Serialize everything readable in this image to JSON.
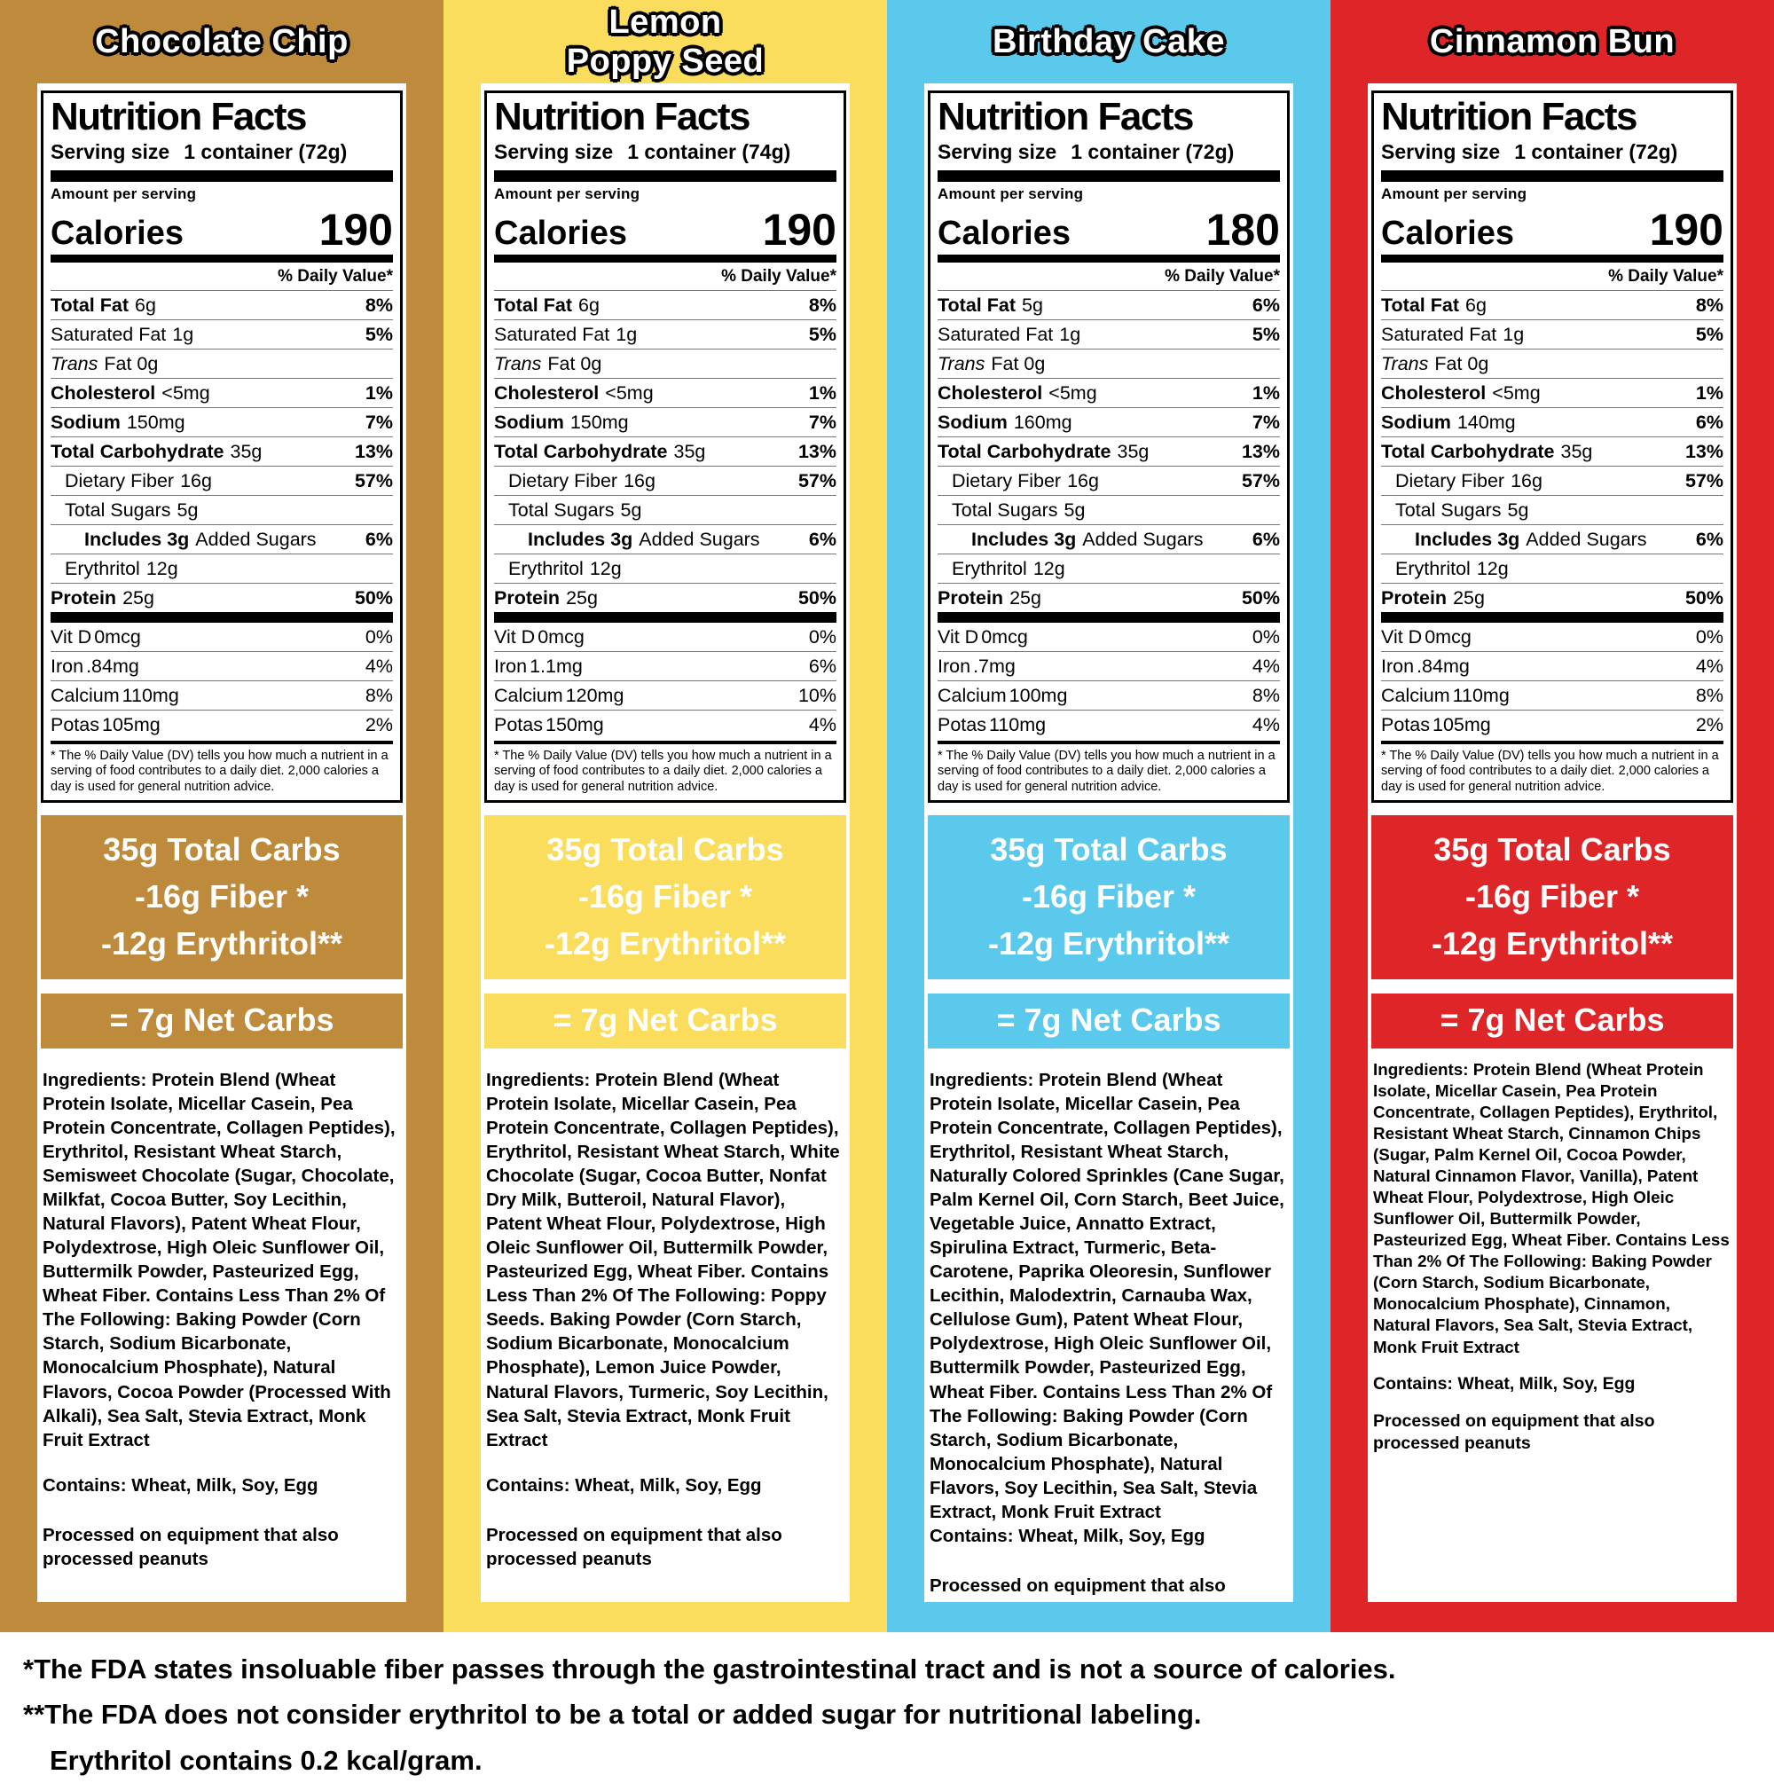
{
  "columns": [
    {
      "title_lines": [
        "Chocolate Chip"
      ],
      "color": "#BE8B3D",
      "label": {
        "heading": "Nutrition Facts",
        "serving_label": "Serving size",
        "serving_value": "1 container (72g)",
        "amount_per_serving": "Amount per serving",
        "calories_label": "Calories",
        "calories_value": "190",
        "dv_header": "% Daily Value*",
        "rows": [
          {
            "name": "Total Fat",
            "amount": "6g",
            "dv": "8%",
            "cls": "b"
          },
          {
            "name": "Saturated Fat",
            "amount": "1g",
            "dv": "5%",
            "cls": "p"
          },
          {
            "name": "Trans",
            "amount": "Fat 0g",
            "dv": "",
            "cls": "i"
          },
          {
            "name": "Cholesterol",
            "amount": "<5mg",
            "dv": "1%",
            "cls": "b"
          },
          {
            "name": "Sodium",
            "amount": "150mg",
            "dv": "7%",
            "cls": "b"
          },
          {
            "name": "Total Carbohydrate",
            "amount": "35g",
            "dv": "13%",
            "cls": "b"
          },
          {
            "name": "Dietary Fiber",
            "amount": "16g",
            "dv": "57%",
            "cls": "p ind1"
          },
          {
            "name": "Total Sugars",
            "amount": "5g",
            "dv": "",
            "cls": "p ind1"
          },
          {
            "name": "Includes 3g",
            "amount": "Added Sugars",
            "dv": "6%",
            "cls": "inc ind2"
          },
          {
            "name": "Erythritol",
            "amount": "12g",
            "dv": "",
            "cls": "p ind1"
          },
          {
            "name": "Protein",
            "amount": "25g",
            "dv": "50%",
            "cls": "b"
          }
        ],
        "vitamins": [
          {
            "name": "Vit D",
            "amount": "0mcg",
            "dv": "0%"
          },
          {
            "name": "Iron",
            "amount": ".84mg",
            "dv": "4%"
          },
          {
            "name": "Calcium",
            "amount": "110mg",
            "dv": "8%"
          },
          {
            "name": "Potas",
            "amount": "105mg",
            "dv": "2%"
          }
        ],
        "footnote": "* The % Daily Value (DV) tells you how much a nutrient in a serving of food contributes to a daily diet. 2,000 calories a day is used for general nutrition advice."
      },
      "carb_box": [
        "35g Total Carbs",
        "-16g Fiber *",
        "-12g Erythritol**"
      ],
      "net_box": "= 7g Net Carbs",
      "ingredients": "Ingredients: Protein Blend (Wheat Protein Isolate, Micellar Casein, Pea Protein Concentrate, Collagen Peptides), Erythritol, Resistant Wheat Starch, Semisweet Chocolate (Sugar, Chocolate, Milkfat, Cocoa Butter, Soy Lecithin, Natural Flavors), Patent Wheat Flour, Polydextrose, High Oleic Sunflower Oil, Buttermilk Powder, Pasteurized Egg, Wheat Fiber. Contains Less Than 2% Of The Following: Baking Powder (Corn Starch, Sodium Bicarbonate, Monocalcium Phosphate), Natural Flavors, Cocoa Powder (Processed With Alkali), Sea Salt, Stevia Extract, Monk Fruit Extract",
      "contains": "Contains: Wheat, Milk, Soy, Egg",
      "processed": "Processed on equipment that also processed peanuts"
    },
    {
      "title_lines": [
        "Lemon",
        "Poppy Seed"
      ],
      "color": "#FADD5C",
      "label": {
        "heading": "Nutrition Facts",
        "serving_label": "Serving size",
        "serving_value": "1 container (74g)",
        "amount_per_serving": "Amount per serving",
        "calories_label": "Calories",
        "calories_value": "190",
        "dv_header": "% Daily Value*",
        "rows": [
          {
            "name": "Total Fat",
            "amount": "6g",
            "dv": "8%",
            "cls": "b"
          },
          {
            "name": "Saturated Fat",
            "amount": "1g",
            "dv": "5%",
            "cls": "p"
          },
          {
            "name": "Trans",
            "amount": "Fat 0g",
            "dv": "",
            "cls": "i"
          },
          {
            "name": "Cholesterol",
            "amount": "<5mg",
            "dv": "1%",
            "cls": "b"
          },
          {
            "name": "Sodium",
            "amount": "150mg",
            "dv": "7%",
            "cls": "b"
          },
          {
            "name": "Total Carbohydrate",
            "amount": "35g",
            "dv": "13%",
            "cls": "b"
          },
          {
            "name": "Dietary Fiber",
            "amount": "16g",
            "dv": "57%",
            "cls": "p ind1"
          },
          {
            "name": "Total Sugars",
            "amount": "5g",
            "dv": "",
            "cls": "p ind1"
          },
          {
            "name": "Includes 3g",
            "amount": "Added Sugars",
            "dv": "6%",
            "cls": "inc ind2"
          },
          {
            "name": "Erythritol",
            "amount": "12g",
            "dv": "",
            "cls": "p ind1"
          },
          {
            "name": "Protein",
            "amount": "25g",
            "dv": "50%",
            "cls": "b"
          }
        ],
        "vitamins": [
          {
            "name": "Vit D",
            "amount": "0mcg",
            "dv": "0%"
          },
          {
            "name": "Iron",
            "amount": "1.1mg",
            "dv": "6%"
          },
          {
            "name": "Calcium",
            "amount": "120mg",
            "dv": "10%"
          },
          {
            "name": "Potas",
            "amount": "150mg",
            "dv": "4%"
          }
        ],
        "footnote": "* The % Daily Value (DV) tells you how much a nutrient in a serving of food contributes to a daily diet. 2,000 calories a day is used for general nutrition advice."
      },
      "carb_box": [
        "35g Total Carbs",
        "-16g Fiber *",
        "-12g Erythritol**"
      ],
      "net_box": "= 7g Net Carbs",
      "ingredients": "Ingredients: Protein Blend (Wheat Protein Isolate, Micellar Casein, Pea Protein Concentrate, Collagen Peptides), Erythritol, Resistant Wheat Starch, White Chocolate (Sugar, Cocoa Butter, Nonfat Dry Milk, Butteroil, Natural Flavor), Patent Wheat Flour, Polydextrose, High Oleic Sunflower Oil, Buttermilk Powder, Pasteurized Egg, Wheat Fiber. Contains Less Than 2% Of The Following: Poppy Seeds. Baking Powder (Corn Starch, Sodium Bicarbonate, Monocalcium Phosphate), Lemon Juice Powder, Natural Flavors, Turmeric, Soy Lecithin, Sea Salt, Stevia Extract, Monk Fruit Extract",
      "contains": "Contains: Wheat, Milk, Soy, Egg",
      "processed": "Processed on equipment that also processed peanuts"
    },
    {
      "title_lines": [
        "Birthday Cake"
      ],
      "color": "#5BC9EB",
      "label": {
        "heading": "Nutrition Facts",
        "serving_label": "Serving size",
        "serving_value": "1 container (72g)",
        "amount_per_serving": "Amount per serving",
        "calories_label": "Calories",
        "calories_value": "180",
        "dv_header": "% Daily Value*",
        "rows": [
          {
            "name": "Total Fat",
            "amount": "5g",
            "dv": "6%",
            "cls": "b"
          },
          {
            "name": "Saturated Fat",
            "amount": "1g",
            "dv": "5%",
            "cls": "p"
          },
          {
            "name": "Trans",
            "amount": "Fat 0g",
            "dv": "",
            "cls": "i"
          },
          {
            "name": "Cholesterol",
            "amount": "<5mg",
            "dv": "1%",
            "cls": "b"
          },
          {
            "name": "Sodium",
            "amount": "160mg",
            "dv": "7%",
            "cls": "b"
          },
          {
            "name": "Total Carbohydrate",
            "amount": "35g",
            "dv": "13%",
            "cls": "b"
          },
          {
            "name": "Dietary Fiber",
            "amount": "16g",
            "dv": "57%",
            "cls": "p ind1"
          },
          {
            "name": "Total Sugars",
            "amount": "5g",
            "dv": "",
            "cls": "p ind1"
          },
          {
            "name": "Includes 3g",
            "amount": "Added Sugars",
            "dv": "6%",
            "cls": "inc ind2"
          },
          {
            "name": "Erythritol",
            "amount": "12g",
            "dv": "",
            "cls": "p ind1"
          },
          {
            "name": "Protein",
            "amount": "25g",
            "dv": "50%",
            "cls": "b"
          }
        ],
        "vitamins": [
          {
            "name": "Vit D",
            "amount": "0mcg",
            "dv": "0%"
          },
          {
            "name": "Iron",
            "amount": ".7mg",
            "dv": "4%"
          },
          {
            "name": "Calcium",
            "amount": "100mg",
            "dv": "8%"
          },
          {
            "name": "Potas",
            "amount": "110mg",
            "dv": "4%"
          }
        ],
        "footnote": "* The % Daily Value (DV) tells you how much a nutrient in a serving of food contributes to a daily diet. 2,000 calories a day is used for general nutrition advice."
      },
      "carb_box": [
        "35g Total Carbs",
        "-16g Fiber *",
        "-12g Erythritol**"
      ],
      "net_box": "= 7g Net Carbs",
      "ingredients": "Ingredients: Protein Blend (Wheat Protein Isolate, Micellar Casein, Pea Protein Concentrate, Collagen Peptides), Erythritol, Resistant Wheat Starch, Naturally Colored Sprinkles (Cane Sugar, Palm Kernel Oil, Corn Starch, Beet Juice, Vegetable Juice, Annatto Extract, Spirulina Extract, Turmeric, Beta-Carotene, Paprika Oleoresin, Sunflower Lecithin, Malodextrin, Carnauba Wax, Cellulose Gum), Patent Wheat Flour, Polydextrose, High Oleic Sunflower Oil, Buttermilk Powder, Pasteurized Egg, Wheat Fiber. Contains Less Than 2% Of The Following: Baking Powder (Corn Starch, Sodium Bicarbonate, Monocalcium Phosphate), Natural Flavors, Soy Lecithin, Sea Salt, Stevia Extract, Monk Fruit Extract",
      "contains": "Contains: Wheat, Milk, Soy, Egg",
      "processed": "Processed on equipment that also processed peanuts"
    },
    {
      "title_lines": [
        "Cinnamon Bun"
      ],
      "color": "#DE2528",
      "label": {
        "heading": "Nutrition Facts",
        "serving_label": "Serving size",
        "serving_value": "1 container (72g)",
        "amount_per_serving": "Amount per serving",
        "calories_label": "Calories",
        "calories_value": "190",
        "dv_header": "% Daily Value*",
        "rows": [
          {
            "name": "Total Fat",
            "amount": "6g",
            "dv": "8%",
            "cls": "b"
          },
          {
            "name": "Saturated Fat",
            "amount": "1g",
            "dv": "5%",
            "cls": "p"
          },
          {
            "name": "Trans",
            "amount": "Fat 0g",
            "dv": "",
            "cls": "i"
          },
          {
            "name": "Cholesterol",
            "amount": "<5mg",
            "dv": "1%",
            "cls": "b"
          },
          {
            "name": "Sodium",
            "amount": "140mg",
            "dv": "6%",
            "cls": "b"
          },
          {
            "name": "Total Carbohydrate",
            "amount": "35g",
            "dv": "13%",
            "cls": "b"
          },
          {
            "name": "Dietary Fiber",
            "amount": "16g",
            "dv": "57%",
            "cls": "p ind1"
          },
          {
            "name": "Total Sugars",
            "amount": "5g",
            "dv": "",
            "cls": "p ind1"
          },
          {
            "name": "Includes 3g",
            "amount": "Added Sugars",
            "dv": "6%",
            "cls": "inc ind2"
          },
          {
            "name": "Erythritol",
            "amount": "12g",
            "dv": "",
            "cls": "p ind1"
          },
          {
            "name": "Protein",
            "amount": "25g",
            "dv": "50%",
            "cls": "b"
          }
        ],
        "vitamins": [
          {
            "name": "Vit D",
            "amount": "0mcg",
            "dv": "0%"
          },
          {
            "name": "Iron",
            "amount": ".84mg",
            "dv": "4%"
          },
          {
            "name": "Calcium",
            "amount": "110mg",
            "dv": "8%"
          },
          {
            "name": "Potas",
            "amount": "105mg",
            "dv": "2%"
          }
        ],
        "footnote": "* The % Daily Value (DV) tells you how much a nutrient in a serving of food contributes to a daily diet. 2,000 calories a day is used for general nutrition advice."
      },
      "carb_box": [
        "35g Total Carbs",
        "-16g Fiber *",
        "-12g Erythritol**"
      ],
      "net_box": "= 7g Net Carbs",
      "ingredients": "Ingredients: Protein Blend (Wheat Protein Isolate, Micellar Casein, Pea Protein Concentrate, Collagen Peptides), Erythritol, Resistant Wheat Starch, Cinnamon Chips (Sugar, Palm Kernel Oil, Cocoa Powder, Natural Cinnamon Flavor, Vanilla), Patent Wheat Flour, Polydextrose, High Oleic Sunflower Oil, Buttermilk Powder, Pasteurized Egg, Wheat Fiber. Contains Less Than 2% Of The Following: Baking Powder (Corn Starch, Sodium Bicarbonate, Monocalcium Phosphate), Cinnamon, Natural Flavors, Sea Salt, Stevia Extract, Monk Fruit Extract",
      "contains": "Contains: Wheat, Milk, Soy, Egg",
      "processed": "Processed on equipment that also processed peanuts"
    }
  ],
  "footer": {
    "lines": [
      "*The FDA states insoluable fiber passes through the gastrointestinal tract and is not a source of calories.",
      "**The FDA does not consider erythritol to be a total or added sugar for nutritional labeling.",
      "Erythritol contains 0.2 kcal/gram."
    ]
  }
}
